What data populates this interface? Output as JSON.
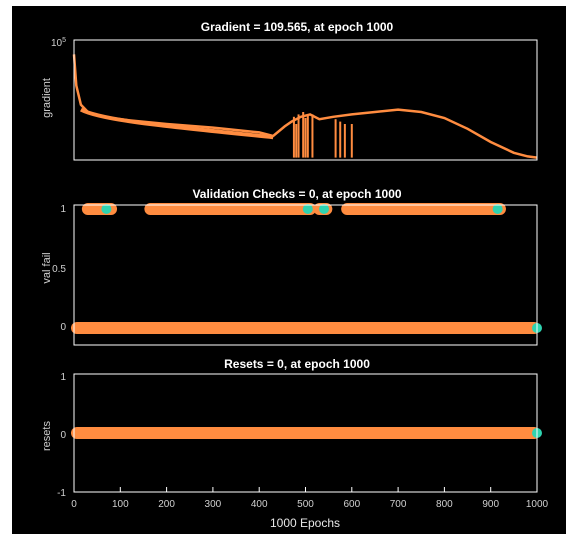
{
  "colors": {
    "background": "#000000",
    "series": "#ff8c40",
    "marker_end": "#2fd3b0",
    "axis": "#ffffff",
    "text": "#ffffff"
  },
  "xlabel": "1000 Epochs",
  "x_ticks": [
    "0",
    "100",
    "200",
    "300",
    "400",
    "500",
    "600",
    "700",
    "800",
    "900",
    "1000"
  ],
  "chart_data": [
    {
      "type": "line",
      "title": "Gradient = 109.565, at epoch 1000",
      "ylabel": "gradient",
      "yscale": "log",
      "y_tick_label": "10",
      "y_tick_exp": "5",
      "xlim": [
        0,
        1000
      ],
      "series": [
        {
          "x": [
            0,
            5,
            15,
            30,
            50,
            80,
            120,
            200,
            300,
            400,
            430,
            455,
            470,
            490,
            510,
            530,
            560,
            600,
            650,
            700,
            750,
            800,
            850,
            900,
            950,
            980,
            1000
          ],
          "y": [
            0.88,
            0.62,
            0.46,
            0.4,
            0.37,
            0.35,
            0.33,
            0.3,
            0.27,
            0.23,
            0.2,
            0.28,
            0.32,
            0.36,
            0.38,
            0.34,
            0.36,
            0.38,
            0.4,
            0.42,
            0.4,
            0.35,
            0.26,
            0.15,
            0.06,
            0.03,
            0.02
          ]
        }
      ]
    },
    {
      "type": "scatter",
      "title": "Validation Checks = 0, at epoch 1000",
      "ylabel": "val fail",
      "ylim": [
        0,
        1
      ],
      "y_ticks": [
        "0",
        "0.5",
        "1"
      ],
      "xlim": [
        0,
        1000
      ],
      "series": [
        {
          "runs_at_1": [
            [
              30,
              80
            ],
            [
              165,
              510
            ],
            [
              530,
              545
            ],
            [
              590,
              920
            ]
          ],
          "run_at_0": [
            0,
            1000
          ],
          "end_markers": [
            [
              70,
              1
            ],
            [
              505,
              1
            ],
            [
              540,
              1
            ],
            [
              915,
              1
            ],
            [
              1000,
              0
            ]
          ]
        }
      ]
    },
    {
      "type": "scatter",
      "title": "Resets = 0, at epoch 1000",
      "ylabel": "resets",
      "ylim": [
        -1,
        1
      ],
      "y_ticks": [
        "-1",
        "0",
        "1"
      ],
      "xlim": [
        0,
        1000
      ],
      "series": [
        {
          "run_at_0": [
            0,
            1000
          ],
          "end_markers": [
            [
              1000,
              0
            ]
          ]
        }
      ]
    }
  ]
}
